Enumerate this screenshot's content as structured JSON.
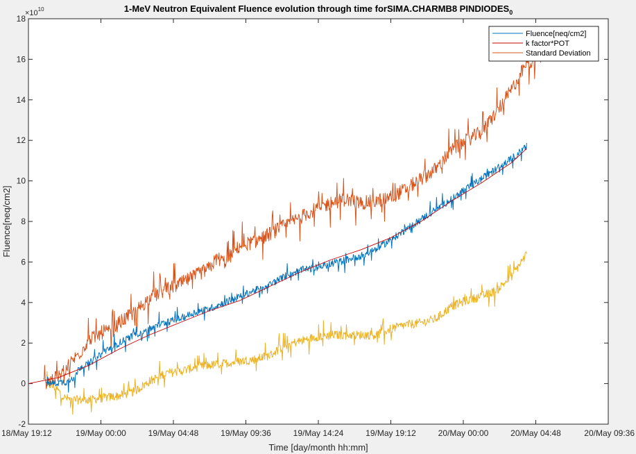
{
  "chart_data": {
    "type": "line",
    "title": "1-MeV Neutron Equivalent Fluence evolution through time forSIMA.CHARMB8 PINDIODES",
    "title_subscript": "0",
    "xlabel": "Time [day/month hh:mm]",
    "ylabel": "Fluence[neq/cm2]",
    "exponent_label": "10",
    "exponent_base": "×10",
    "x_ticks": [
      "18/May 19:12",
      "19/May 00:00",
      "19/May 04:48",
      "19/May 09:36",
      "19/May 14:24",
      "19/May 19:12",
      "20/May 00:00",
      "20/May 04:48",
      "20/May 09:36"
    ],
    "xlim_hours": [
      0,
      38.4
    ],
    "ylim": [
      -2,
      18
    ],
    "y_ticks": [
      -2,
      0,
      2,
      4,
      6,
      8,
      10,
      12,
      14,
      16,
      18
    ],
    "y_unit_multiplier": "1e10",
    "legend_position": "top-right",
    "series": [
      {
        "name": "Fluence[neq/cm2]",
        "color": "#0072bd",
        "points_hours": [
          [
            1.2,
            0
          ],
          [
            2,
            0.05
          ],
          [
            2.6,
            0.1
          ],
          [
            3,
            0.3
          ],
          [
            3.4,
            0.8
          ],
          [
            4,
            1.0
          ],
          [
            4.6,
            1.3
          ],
          [
            5,
            1.6
          ],
          [
            6,
            2.0
          ],
          [
            7,
            2.4
          ],
          [
            8,
            2.7
          ],
          [
            9,
            3.0
          ],
          [
            10,
            3.2
          ],
          [
            11,
            3.5
          ],
          [
            12,
            3.7
          ],
          [
            13,
            4.0
          ],
          [
            14,
            4.3
          ],
          [
            15,
            4.6
          ],
          [
            16,
            4.9
          ],
          [
            17,
            5.3
          ],
          [
            18,
            5.6
          ],
          [
            19,
            5.7
          ],
          [
            20,
            5.9
          ],
          [
            21,
            6.1
          ],
          [
            22,
            6.3
          ],
          [
            23,
            6.6
          ],
          [
            24,
            7.1
          ],
          [
            25,
            7.6
          ],
          [
            26,
            8.1
          ],
          [
            27,
            8.6
          ],
          [
            28,
            9.1
          ],
          [
            29,
            9.6
          ],
          [
            30,
            10.1
          ],
          [
            31,
            10.6
          ],
          [
            32,
            11.1
          ],
          [
            33,
            11.7
          ]
        ],
        "noise": 0.18
      },
      {
        "name": "k factor*POT",
        "color": "#cc0000",
        "points_hours": [
          [
            0,
            0
          ],
          [
            2,
            0.3
          ],
          [
            4,
            0.9
          ],
          [
            6,
            1.7
          ],
          [
            8,
            2.4
          ],
          [
            10,
            3.0
          ],
          [
            12,
            3.6
          ],
          [
            14,
            4.1
          ],
          [
            16,
            4.8
          ],
          [
            18,
            5.5
          ],
          [
            20,
            6.1
          ],
          [
            22,
            6.6
          ],
          [
            24,
            7.2
          ],
          [
            26,
            8.0
          ],
          [
            28,
            9.0
          ],
          [
            30,
            9.9
          ],
          [
            32,
            10.9
          ],
          [
            33,
            11.6
          ]
        ],
        "noise": 0
      },
      {
        "name": "Standard Deviation",
        "color": "#d95319",
        "points_hours": [
          [
            1,
            0
          ],
          [
            1.5,
            0.2
          ],
          [
            2,
            0.3
          ],
          [
            2.5,
            0.8
          ],
          [
            3,
            1.2
          ],
          [
            3.5,
            1.6
          ],
          [
            4,
            2.2
          ],
          [
            4.5,
            2.3
          ],
          [
            5,
            2.6
          ],
          [
            5.5,
            2.5
          ],
          [
            6,
            3.0
          ],
          [
            7,
            3.5
          ],
          [
            8,
            4.2
          ],
          [
            9,
            4.6
          ],
          [
            10,
            4.9
          ],
          [
            11,
            5.3
          ],
          [
            12,
            5.7
          ],
          [
            12.5,
            6.2
          ],
          [
            13,
            6.0
          ],
          [
            14,
            6.8
          ],
          [
            15,
            7.0
          ],
          [
            16,
            7.4
          ],
          [
            17,
            7.8
          ],
          [
            18,
            8.2
          ],
          [
            19,
            8.6
          ],
          [
            20,
            8.9
          ],
          [
            21,
            9.1
          ],
          [
            22,
            8.9
          ],
          [
            23,
            9.0
          ],
          [
            24,
            9.2
          ],
          [
            25,
            9.6
          ],
          [
            26,
            10.1
          ],
          [
            27,
            10.6
          ],
          [
            28,
            11.5
          ],
          [
            29,
            12.0
          ],
          [
            30,
            12.4
          ],
          [
            31,
            13.4
          ],
          [
            32,
            14.5
          ],
          [
            33,
            15.8
          ],
          [
            34,
            16.2
          ]
        ],
        "noise": 0.35
      },
      {
        "name": "Standard Deviation",
        "color": "#edb120",
        "legend": false,
        "points_hours": [
          [
            1.2,
            0
          ],
          [
            1.8,
            -0.2
          ],
          [
            2.4,
            -0.7
          ],
          [
            3,
            -0.8
          ],
          [
            4,
            -0.8
          ],
          [
            5,
            -0.7
          ],
          [
            6,
            -0.6
          ],
          [
            7,
            -0.4
          ],
          [
            8,
            0.1
          ],
          [
            9,
            0.5
          ],
          [
            10,
            0.6
          ],
          [
            11,
            0.8
          ],
          [
            12,
            0.9
          ],
          [
            13,
            1.0
          ],
          [
            14,
            1.1
          ],
          [
            15,
            1.2
          ],
          [
            16,
            1.4
          ],
          [
            17,
            1.9
          ],
          [
            18,
            2.1
          ],
          [
            19,
            2.3
          ],
          [
            20,
            2.4
          ],
          [
            21,
            2.4
          ],
          [
            22,
            2.4
          ],
          [
            23,
            2.4
          ],
          [
            24,
            2.7
          ],
          [
            25,
            2.9
          ],
          [
            26,
            3.0
          ],
          [
            27,
            3.2
          ],
          [
            28,
            3.8
          ],
          [
            29,
            4.1
          ],
          [
            30,
            4.3
          ],
          [
            31,
            4.6
          ],
          [
            32,
            5.3
          ],
          [
            33,
            6.4
          ]
        ],
        "noise": 0.22
      }
    ]
  }
}
